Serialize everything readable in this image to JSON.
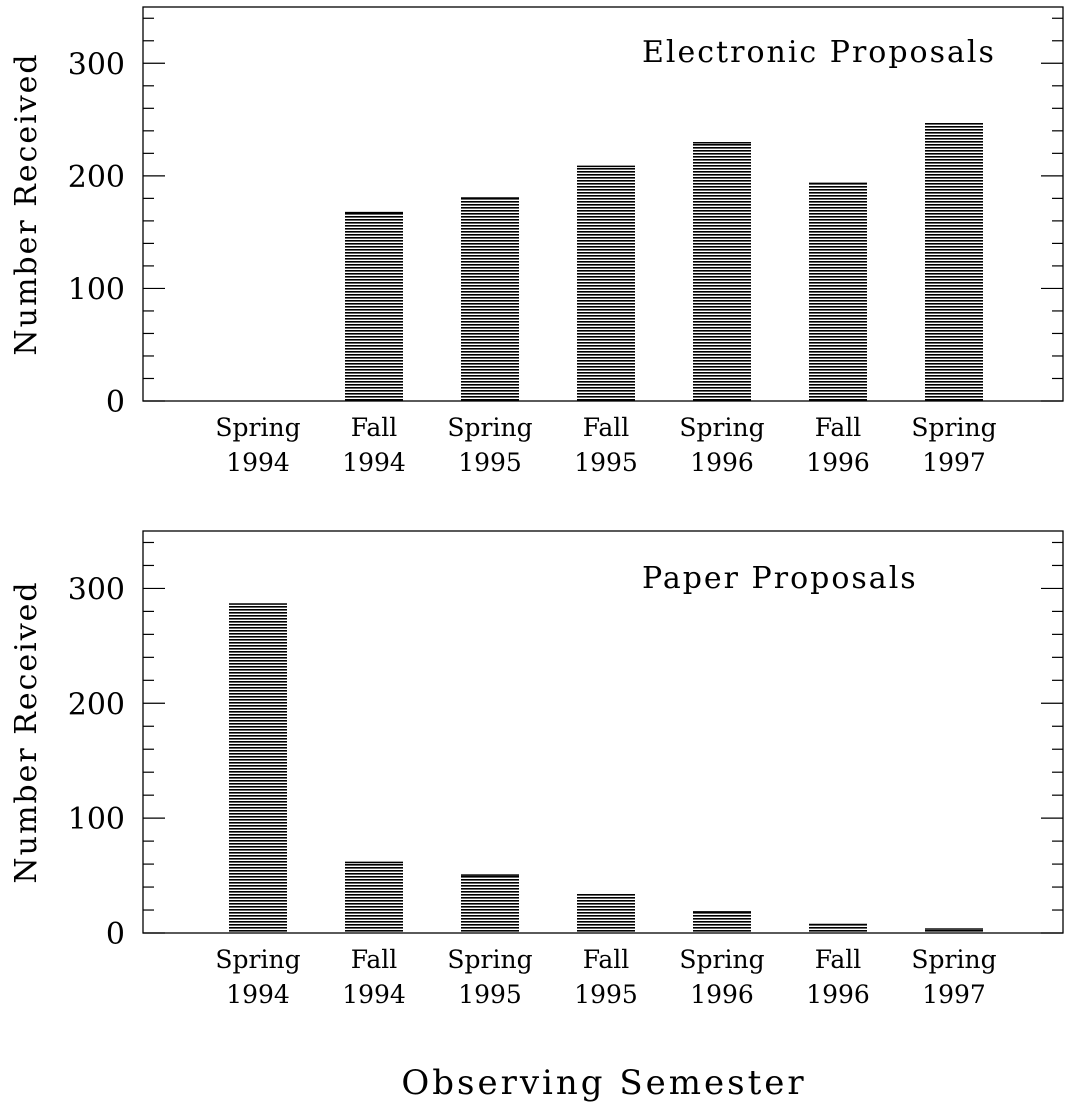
{
  "chart_data": [
    {
      "type": "bar",
      "title": "Electronic Proposals",
      "xlabel": "Observing Semester",
      "ylabel": "Number Received",
      "ylim": [
        0,
        350
      ],
      "yticks": [
        0,
        100,
        200,
        300
      ],
      "grid": false,
      "categories": [
        [
          "Spring",
          "1994"
        ],
        [
          "Fall",
          "1994"
        ],
        [
          "Spring",
          "1995"
        ],
        [
          "Fall",
          "1995"
        ],
        [
          "Spring",
          "1996"
        ],
        [
          "Fall",
          "1996"
        ],
        [
          "Spring",
          "1997"
        ]
      ],
      "values": [
        0,
        168,
        181,
        209,
        230,
        194,
        247
      ]
    },
    {
      "type": "bar",
      "title": "Paper Proposals",
      "xlabel": "Observing Semester",
      "ylabel": "Number Received",
      "ylim": [
        0,
        350
      ],
      "yticks": [
        0,
        100,
        200,
        300
      ],
      "grid": false,
      "categories": [
        [
          "Spring",
          "1994"
        ],
        [
          "Fall",
          "1994"
        ],
        [
          "Spring",
          "1995"
        ],
        [
          "Fall",
          "1995"
        ],
        [
          "Spring",
          "1996"
        ],
        [
          "Fall",
          "1996"
        ],
        [
          "Spring",
          "1997"
        ]
      ],
      "values": [
        287,
        62,
        51,
        34,
        19,
        8,
        4
      ]
    }
  ],
  "figure": {
    "x_title": "Observing Semester",
    "bar_color": "#000000",
    "fill_pattern": "horizontal-hatch"
  }
}
